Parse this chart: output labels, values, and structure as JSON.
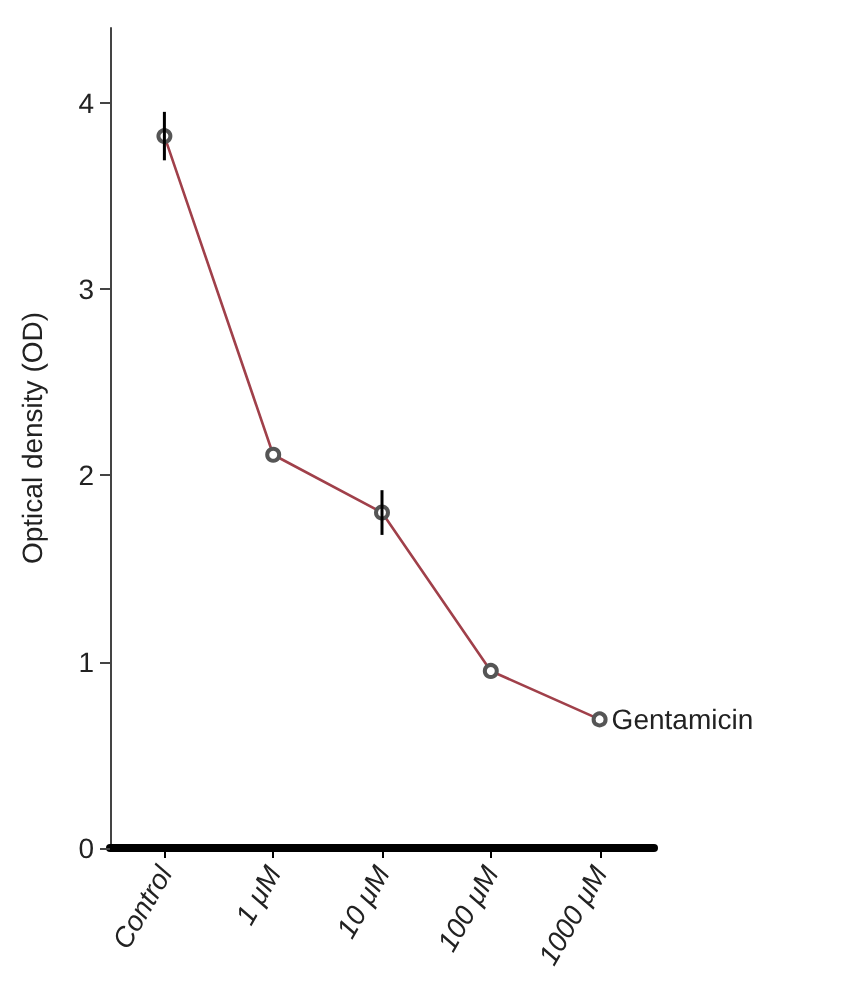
{
  "chart_data": {
    "type": "line",
    "ylabel": "Optical density (OD)",
    "categories": [
      "Control",
      "1 μM",
      "10 μM",
      "100 μM",
      "1000 μM"
    ],
    "series": [
      {
        "name": "Gentamicin",
        "color": "#a0404a",
        "values": [
          3.82,
          2.11,
          1.8,
          0.95,
          0.69
        ],
        "errors": [
          0.13,
          null,
          0.12,
          null,
          null
        ]
      }
    ],
    "ylim": [
      0,
      4.4
    ],
    "yticks": [
      0,
      1,
      2,
      3,
      4
    ],
    "grid": false,
    "legend": false,
    "marker": "circle",
    "line_style": "solid"
  }
}
